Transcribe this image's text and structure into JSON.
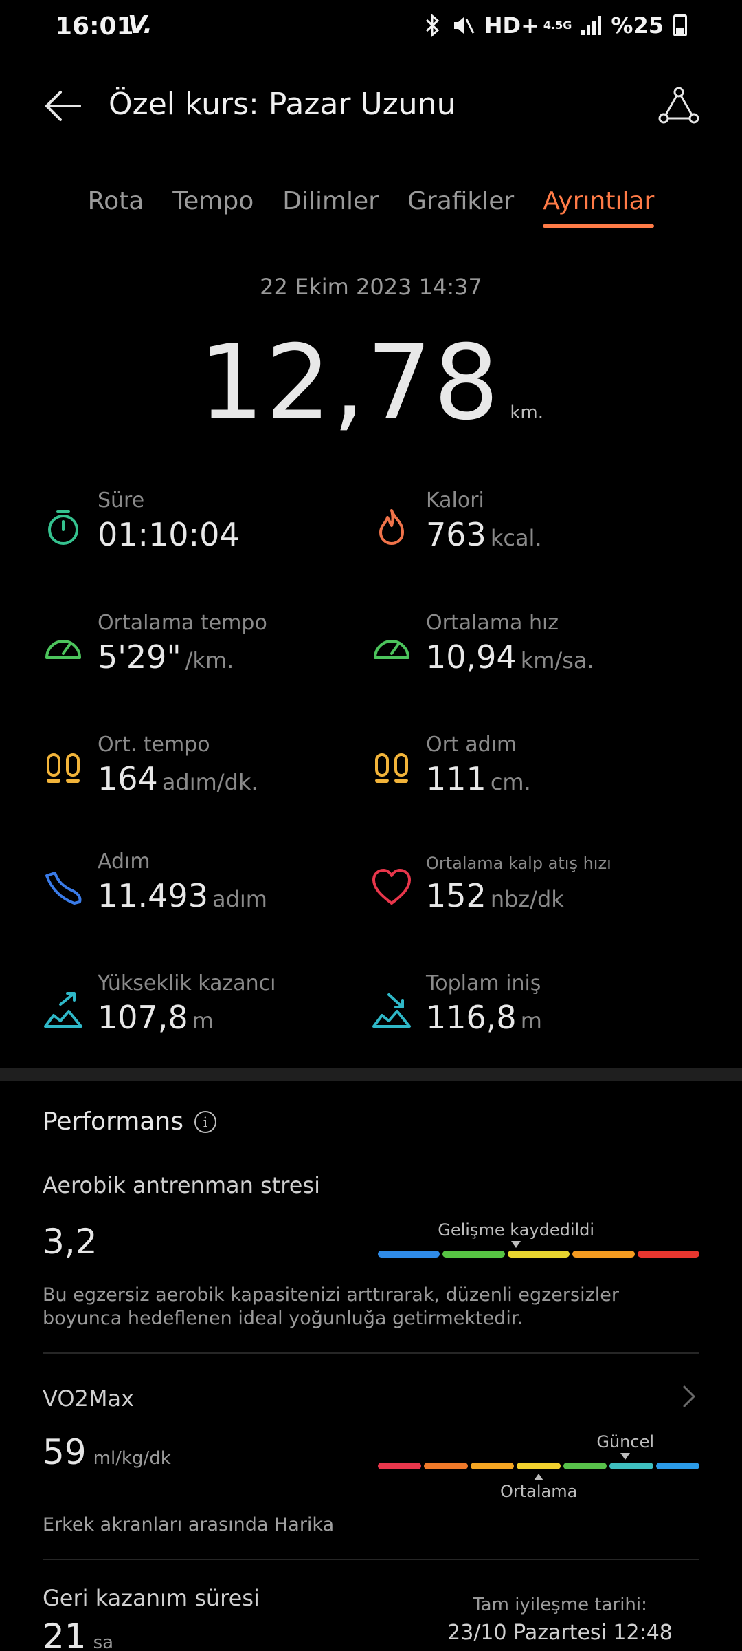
{
  "status_bar": {
    "time": "16:01",
    "carrier": "V.",
    "network": "HD+",
    "net_type": "4.5G",
    "battery": "%25"
  },
  "header": {
    "title": "Özel kurs: Pazar Uzunu"
  },
  "tabs": [
    {
      "label": "Rota",
      "active": false
    },
    {
      "label": "Tempo",
      "active": false
    },
    {
      "label": "Dilimler",
      "active": false
    },
    {
      "label": "Grafikler",
      "active": false
    },
    {
      "label": "Ayrıntılar",
      "active": true
    }
  ],
  "summary": {
    "date": "22 Ekim 2023 14:37",
    "distance": "12,78",
    "distance_unit": "km."
  },
  "metrics": [
    {
      "label": "Süre",
      "value": "01:10:04",
      "unit": "",
      "icon": "stopwatch-icon",
      "color": "#35c28f"
    },
    {
      "label": "Kalori",
      "value": "763",
      "unit": "kcal.",
      "icon": "flame-icon",
      "color": "#f0734a"
    },
    {
      "label": "Ortalama tempo",
      "value": "5'29\"",
      "unit": "/km.",
      "icon": "speedometer-icon",
      "color": "#4cc45c"
    },
    {
      "label": "Ortalama hız",
      "value": "10,94",
      "unit": "km/sa.",
      "icon": "speedometer-icon",
      "color": "#4cc45c"
    },
    {
      "label": "Ort. tempo",
      "value": "164",
      "unit": "adım/dk.",
      "icon": "footprints-icon",
      "color": "#f2b43a"
    },
    {
      "label": "Ort adım",
      "value": "111",
      "unit": "cm.",
      "icon": "footprints-icon",
      "color": "#f2b43a"
    },
    {
      "label": "Adım",
      "value": "11.493",
      "unit": "adım",
      "icon": "shoe-icon",
      "color": "#3a7be8"
    },
    {
      "label": "Ortalama kalp atış hızı",
      "value": "152",
      "unit": "nbz/dk",
      "icon": "heart-icon",
      "color": "#e8364b"
    },
    {
      "label": "Yükseklik kazancı",
      "value": "107,8",
      "unit": "m",
      "icon": "elevation-gain-icon",
      "color": "#2fb8c8"
    },
    {
      "label": "Toplam iniş",
      "value": "116,8",
      "unit": "m",
      "icon": "elevation-loss-icon",
      "color": "#2fb8c8"
    }
  ],
  "performance": {
    "title": "Performans",
    "aerobic": {
      "label": "Aerobik antrenman stresi",
      "value": "3,2",
      "marker_label": "Gelişme kaydedildi",
      "marker_fraction": 0.43,
      "scale_colors": [
        "#2f8be8",
        "#57c443",
        "#e8d52f",
        "#f59b20",
        "#e8362f"
      ],
      "description": "Bu egzersiz aerobik kapasitenizi arttırarak, düzenli egzersizler boyunca hedeflenen ideal yoğunluğa getirmektedir."
    },
    "vo2max": {
      "label": "VO2Max",
      "value": "59",
      "unit": "ml/kg/dk",
      "current_label": "Güncel",
      "current_fraction": 0.77,
      "average_label": "Ortalama",
      "average_fraction": 0.5,
      "scale_colors": [
        "#e8364b",
        "#f07a2a",
        "#f5a623",
        "#f2d12f",
        "#58c14a",
        "#3fbfbf",
        "#2b9be8"
      ],
      "peer_text": "Erkek akranları arasında Harika"
    },
    "recovery": {
      "label": "Geri kazanım süresi",
      "value": "21",
      "unit": "sa",
      "full_label": "Tam iyileşme tarihi:",
      "full_date": "23/10 Pazartesi 12:48"
    }
  }
}
